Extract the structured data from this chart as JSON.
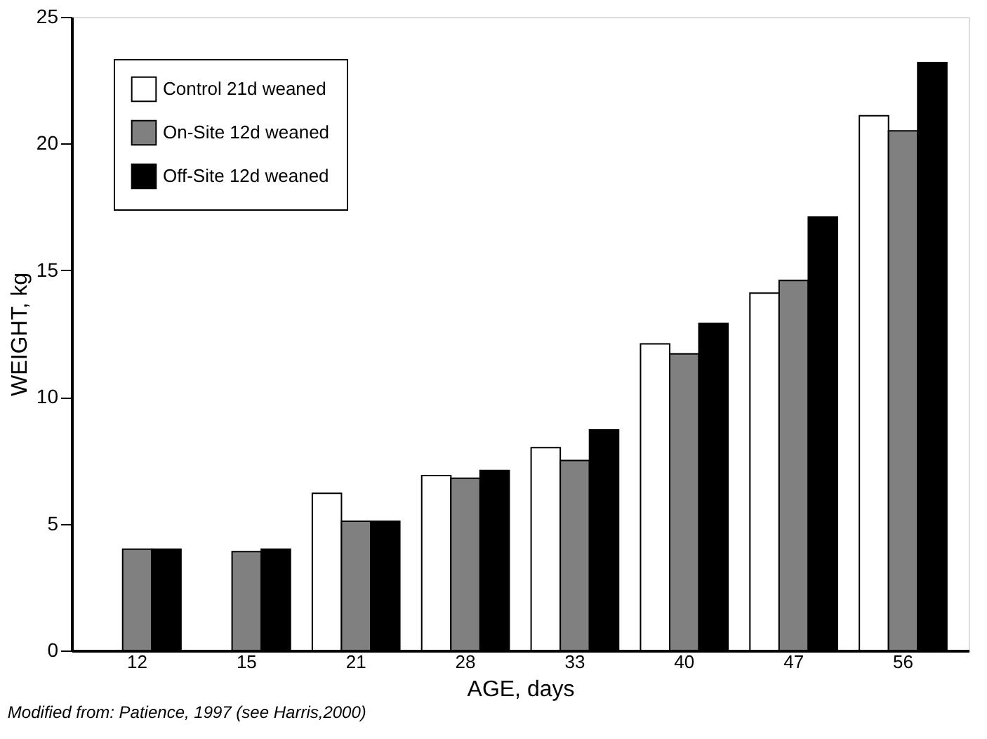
{
  "chart_data": {
    "type": "bar",
    "xlabel": "AGE, days",
    "ylabel": "WEIGHT, kg",
    "categories": [
      "12",
      "15",
      "21",
      "28",
      "33",
      "40",
      "47",
      "56"
    ],
    "series": [
      {
        "name": "Control 21d weaned",
        "color": "#ffffff",
        "values": [
          null,
          null,
          6.2,
          6.9,
          8.0,
          12.1,
          14.1,
          21.1
        ]
      },
      {
        "name": "On-Site 12d weaned",
        "color": "#808080",
        "values": [
          4.0,
          3.9,
          5.1,
          6.8,
          7.5,
          11.7,
          14.6,
          20.5
        ]
      },
      {
        "name": "Off-Site 12d weaned",
        "color": "#000000",
        "values": [
          4.0,
          4.0,
          5.1,
          7.1,
          8.7,
          12.9,
          17.1,
          23.2
        ]
      }
    ],
    "ylim": [
      0,
      25
    ],
    "yticks": [
      0,
      5,
      10,
      15,
      20,
      25
    ],
    "grid": false,
    "legend": "top left",
    "annotations": [
      "Modified from: Patience, 1997 (see Harris,2000)"
    ]
  }
}
